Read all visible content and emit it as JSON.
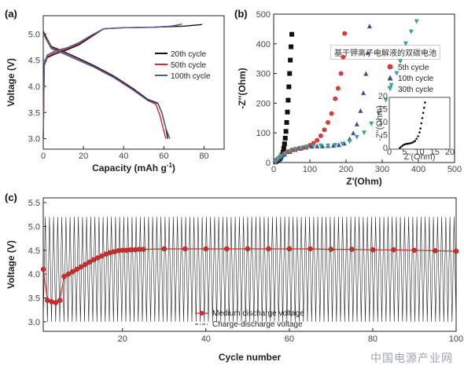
{
  "watermark_text": "中国电源产业网",
  "caption_overlay": "基于钾离子电解液的双碳电池",
  "chart_data": [
    {
      "panel": "(a)",
      "type": "line",
      "xlabel": "Capacity (mAh g",
      "xlabel_sup": "-1",
      "xlabel_tail": ")",
      "ylabel": "Voltage (V)",
      "xlim": [
        0,
        90
      ],
      "ylim": [
        2.8,
        5.35
      ],
      "xticks": [
        0,
        20,
        40,
        60,
        80
      ],
      "yticks": [
        3.0,
        3.5,
        4.0,
        4.5,
        5.0
      ],
      "grid": false,
      "legend_position": "right",
      "series": [
        {
          "name": "20th cycle",
          "color": "#111111",
          "charge": [
            [
              0,
              3.0
            ],
            [
              0.5,
              4.4
            ],
            [
              2,
              4.55
            ],
            [
              6,
              4.62
            ],
            [
              12,
              4.7
            ],
            [
              18,
              4.8
            ],
            [
              24,
              4.95
            ],
            [
              30,
              5.1
            ],
            [
              40,
              5.12
            ],
            [
              55,
              5.13
            ],
            [
              70,
              5.15
            ],
            [
              79,
              5.18
            ]
          ],
          "discharge": [
            [
              0,
              5.05
            ],
            [
              2,
              4.9
            ],
            [
              4,
              4.76
            ],
            [
              8,
              4.7
            ],
            [
              15,
              4.58
            ],
            [
              25,
              4.4
            ],
            [
              35,
              4.2
            ],
            [
              45,
              3.95
            ],
            [
              52,
              3.75
            ],
            [
              57,
              3.68
            ],
            [
              59,
              3.5
            ],
            [
              61,
              3.2
            ],
            [
              62,
              3.0
            ]
          ]
        },
        {
          "name": "50th cycle",
          "color": "#d42a2a",
          "charge": [
            [
              0,
              3.0
            ],
            [
              0.5,
              4.42
            ],
            [
              2,
              4.57
            ],
            [
              6,
              4.65
            ],
            [
              12,
              4.72
            ],
            [
              18,
              4.82
            ],
            [
              24,
              4.97
            ],
            [
              30,
              5.1
            ],
            [
              40,
              5.12
            ],
            [
              55,
              5.13
            ],
            [
              64,
              5.15
            ],
            [
              69,
              5.19
            ]
          ],
          "discharge": [
            [
              0,
              5.02
            ],
            [
              2,
              4.88
            ],
            [
              4,
              4.74
            ],
            [
              8,
              4.67
            ],
            [
              15,
              4.55
            ],
            [
              25,
              4.38
            ],
            [
              35,
              4.18
            ],
            [
              45,
              3.93
            ],
            [
              52,
              3.73
            ],
            [
              56,
              3.66
            ],
            [
              58,
              3.45
            ],
            [
              60,
              3.15
            ],
            [
              61,
              3.0
            ]
          ]
        },
        {
          "name": "100th cycle",
          "color": "#4a5f9a",
          "charge": [
            [
              0,
              3.0
            ],
            [
              0.5,
              4.45
            ],
            [
              2,
              4.6
            ],
            [
              6,
              4.68
            ],
            [
              12,
              4.74
            ],
            [
              18,
              4.84
            ],
            [
              24,
              4.98
            ],
            [
              30,
              5.1
            ],
            [
              40,
              5.12
            ],
            [
              55,
              5.13
            ],
            [
              63,
              5.15
            ],
            [
              67,
              5.17
            ]
          ],
          "discharge": [
            [
              0,
              5.0
            ],
            [
              2,
              4.86
            ],
            [
              4,
              4.72
            ],
            [
              8,
              4.66
            ],
            [
              15,
              4.54
            ],
            [
              25,
              4.37
            ],
            [
              35,
              4.17
            ],
            [
              45,
              3.92
            ],
            [
              52,
              3.73
            ],
            [
              57,
              3.67
            ],
            [
              59,
              3.5
            ],
            [
              61,
              3.2
            ],
            [
              63,
              3.0
            ]
          ]
        }
      ]
    },
    {
      "panel": "(b)",
      "type": "scatter",
      "xlabel": "Z'(Ohm)",
      "ylabel": "-Z''(Ohm)",
      "xlim": [
        0,
        500
      ],
      "ylim": [
        0,
        500
      ],
      "xticks": [
        0,
        100,
        200,
        300,
        400,
        500
      ],
      "yticks": [
        0,
        100,
        200,
        300,
        400,
        500
      ],
      "grid": false,
      "legend_position": "right",
      "series": [
        {
          "name": "Black squares",
          "color": "#111111",
          "marker": "square",
          "points": [
            [
              5,
              2
            ],
            [
              8,
              5
            ],
            [
              11,
              8
            ],
            [
              14,
              10
            ],
            [
              17,
              13
            ],
            [
              20,
              18
            ],
            [
              23,
              25
            ],
            [
              26,
              35
            ],
            [
              28,
              48
            ],
            [
              30,
              63
            ],
            [
              32,
              82
            ],
            [
              34,
              105
            ],
            [
              36,
              135
            ],
            [
              38,
              170
            ],
            [
              40,
              210
            ],
            [
              42,
              255
            ],
            [
              44,
              300
            ],
            [
              46,
              345
            ],
            [
              48,
              390
            ],
            [
              50,
              432
            ]
          ]
        },
        {
          "name": "5th cycle",
          "color": "#d93a3a",
          "marker": "circle",
          "points": [
            [
              5,
              3
            ],
            [
              10,
              10
            ],
            [
              16,
              17
            ],
            [
              22,
              23
            ],
            [
              30,
              30
            ],
            [
              40,
              36
            ],
            [
              50,
              42
            ],
            [
              60,
              45
            ],
            [
              70,
              48
            ],
            [
              80,
              50
            ],
            [
              90,
              53
            ],
            [
              100,
              58
            ],
            [
              110,
              65
            ],
            [
              120,
              75
            ],
            [
              130,
              90
            ],
            [
              140,
              110
            ],
            [
              150,
              135
            ],
            [
              160,
              165
            ],
            [
              170,
              215
            ],
            [
              178,
              250
            ],
            [
              186,
              300
            ],
            [
              192,
              355
            ],
            [
              196,
              435
            ]
          ]
        },
        {
          "name": "10th cycle",
          "color": "#3e4f8e",
          "marker": "triangle-up",
          "points": [
            [
              5,
              3
            ],
            [
              12,
              12
            ],
            [
              20,
              20
            ],
            [
              30,
              28
            ],
            [
              45,
              37
            ],
            [
              60,
              44
            ],
            [
              75,
              48
            ],
            [
              90,
              52
            ],
            [
              105,
              55
            ],
            [
              120,
              56
            ],
            [
              135,
              56
            ],
            [
              150,
              57
            ],
            [
              165,
              58
            ],
            [
              180,
              60
            ],
            [
              195,
              65
            ],
            [
              210,
              80
            ],
            [
              220,
              100
            ],
            [
              230,
              130
            ],
            [
              240,
              175
            ],
            [
              248,
              235
            ],
            [
              255,
              300
            ],
            [
              260,
              370
            ],
            [
              265,
              460
            ]
          ]
        },
        {
          "name": "30th cycle",
          "color": "#3aa39a",
          "marker": "triangle-down",
          "points": [
            [
              5,
              3
            ],
            [
              12,
              12
            ],
            [
              20,
              20
            ],
            [
              30,
              28
            ],
            [
              45,
              37
            ],
            [
              60,
              44
            ],
            [
              75,
              48
            ],
            [
              90,
              52
            ],
            [
              110,
              55
            ],
            [
              130,
              56
            ],
            [
              150,
              56
            ],
            [
              170,
              58
            ],
            [
              190,
              62
            ],
            [
              210,
              70
            ],
            [
              230,
              85
            ],
            [
              250,
              100
            ],
            [
              270,
              130
            ],
            [
              290,
              165
            ],
            [
              310,
              210
            ],
            [
              325,
              260
            ],
            [
              340,
              300
            ],
            [
              350,
              340
            ],
            [
              365,
              400
            ],
            [
              380,
              440
            ],
            [
              395,
              475
            ]
          ]
        }
      ],
      "inset": {
        "xlabel": "Z'(Ohm)",
        "ylabel": "-Z''(Ohm)",
        "xlim": [
          0,
          20
        ],
        "ylim": [
          0,
          20
        ],
        "xticks": [
          0,
          5,
          10,
          15,
          20
        ],
        "yticks": [
          0,
          5,
          10,
          15,
          20
        ],
        "points": [
          [
            3.5,
            0.5
          ],
          [
            4,
            1
          ],
          [
            4.5,
            1.5
          ],
          [
            5,
            1.8
          ],
          [
            5.5,
            2
          ],
          [
            6,
            2.1
          ],
          [
            6.5,
            2.2
          ],
          [
            7,
            2.3
          ],
          [
            7.5,
            2.5
          ],
          [
            8,
            2.8
          ],
          [
            8.5,
            3.2
          ],
          [
            9,
            4
          ],
          [
            9.5,
            5
          ],
          [
            10,
            6.5
          ],
          [
            10.3,
            8
          ],
          [
            10.6,
            10
          ],
          [
            10.9,
            12
          ],
          [
            11.2,
            14
          ],
          [
            11.5,
            16
          ],
          [
            11.8,
            18
          ]
        ]
      }
    },
    {
      "panel": "(c)",
      "type": "line",
      "xlabel": "Cycle number",
      "ylabel": "Voltage (V)",
      "xlim": [
        1,
        100
      ],
      "ylim": [
        2.8,
        5.6
      ],
      "xticks": [
        20,
        40,
        60,
        80,
        100
      ],
      "yticks": [
        3.0,
        3.5,
        4.0,
        4.5,
        5.0,
        5.5
      ],
      "grid": false,
      "legend_position": "bottom-left",
      "series": [
        {
          "name": "Medium discharge voltage",
          "color": "#d42a2a",
          "marker": "circle",
          "points": [
            [
              1,
              4.1
            ],
            [
              2,
              3.45
            ],
            [
              3,
              3.42
            ],
            [
              4,
              3.4
            ],
            [
              5,
              3.45
            ],
            [
              6,
              3.95
            ],
            [
              7,
              4.0
            ],
            [
              8,
              4.05
            ],
            [
              9,
              4.1
            ],
            [
              10,
              4.15
            ],
            [
              11,
              4.2
            ],
            [
              12,
              4.25
            ],
            [
              13,
              4.3
            ],
            [
              14,
              4.34
            ],
            [
              15,
              4.38
            ],
            [
              16,
              4.42
            ],
            [
              17,
              4.45
            ],
            [
              18,
              4.47
            ],
            [
              19,
              4.49
            ],
            [
              20,
              4.5
            ],
            [
              21,
              4.5
            ],
            [
              22,
              4.51
            ],
            [
              23,
              4.51
            ],
            [
              24,
              4.52
            ],
            [
              25,
              4.52
            ],
            [
              30,
              4.53
            ],
            [
              35,
              4.53
            ],
            [
              40,
              4.53
            ],
            [
              45,
              4.53
            ],
            [
              50,
              4.53
            ],
            [
              55,
              4.53
            ],
            [
              60,
              4.53
            ],
            [
              65,
              4.53
            ],
            [
              70,
              4.52
            ],
            [
              75,
              4.52
            ],
            [
              80,
              4.51
            ],
            [
              85,
              4.51
            ],
            [
              90,
              4.5
            ],
            [
              95,
              4.49
            ],
            [
              100,
              4.48
            ]
          ]
        },
        {
          "name": "Charge-discharge voltage",
          "color": "#222222",
          "upper": 5.2,
          "lower": 3.0,
          "cycles": 100
        }
      ]
    }
  ]
}
